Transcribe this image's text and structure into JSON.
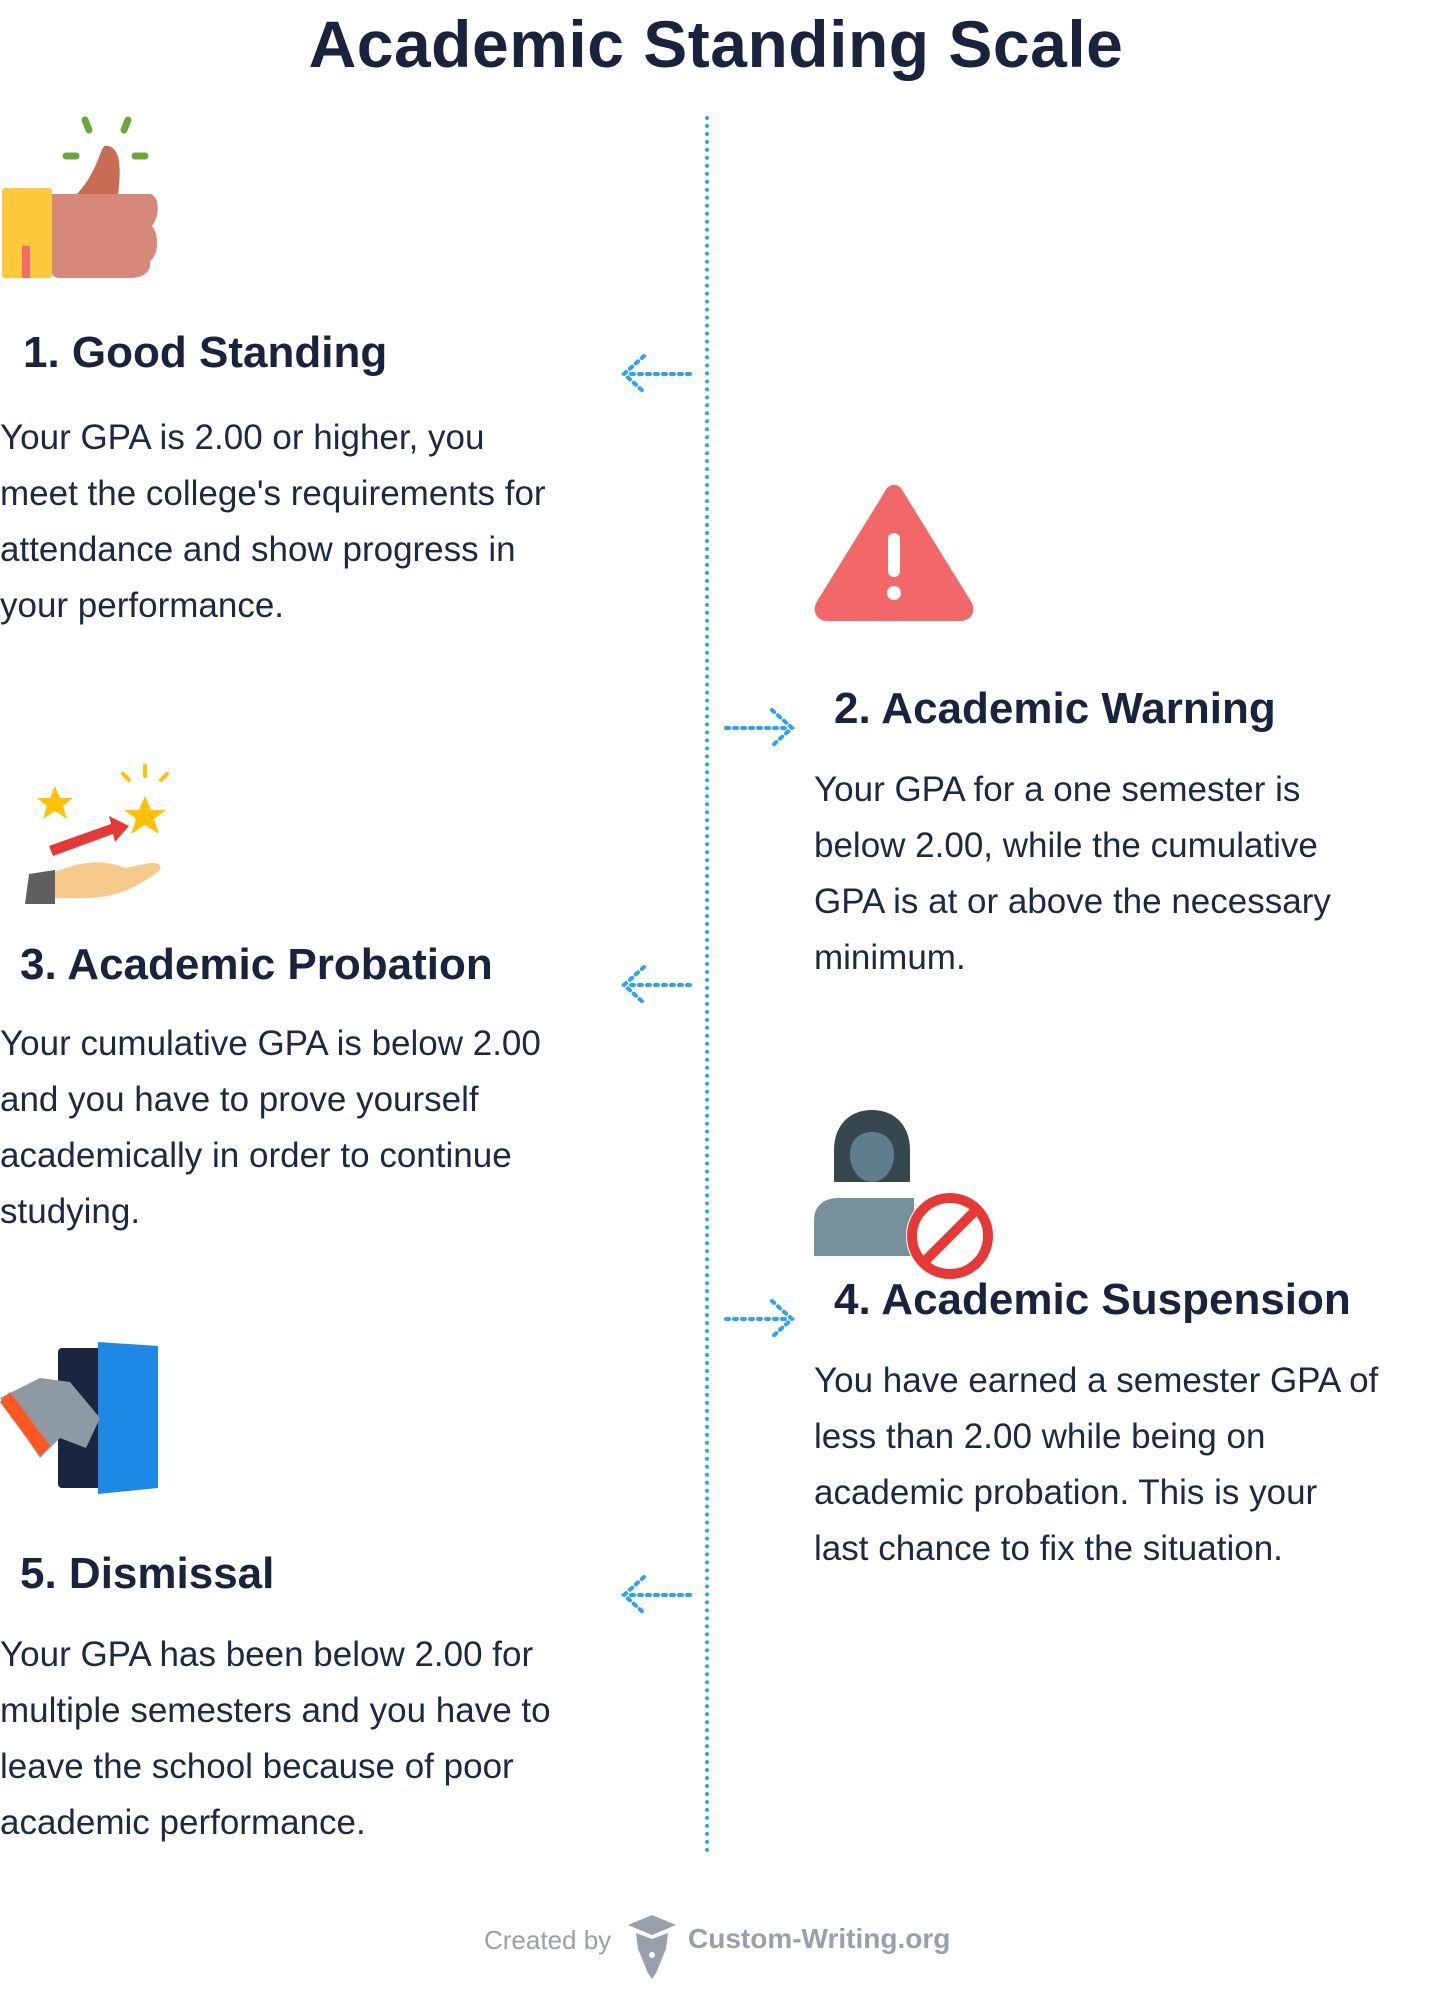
{
  "title": "Academic Standing Scale",
  "colors": {
    "heading": "#19233d",
    "text": "#1d2841",
    "connector": "#2ea3f2",
    "footer": "#9aa0ab"
  },
  "items": [
    {
      "heading": "1. Good Standing",
      "icon": "thumbs-up-icon",
      "side": "left",
      "lines": [
        "Your GPA is 2.00 or higher, you",
        "meet the college's requirements for",
        "attendance and show progress in",
        "your performance."
      ]
    },
    {
      "heading": "2. Academic Warning",
      "icon": "warning-triangle-icon",
      "side": "right",
      "lines": [
        "Your GPA for a one semester is",
        "below 2.00, while the cumulative",
        "GPA is at or above the necessary",
        "minimum."
      ]
    },
    {
      "heading": "3. Academic Probation",
      "icon": "hand-stars-icon",
      "side": "left",
      "lines": [
        "Your cumulative GPA is below 2.00",
        "and you have to prove yourself",
        "academically in order to continue",
        "studying."
      ]
    },
    {
      "heading": "4. Academic Suspension",
      "icon": "user-blocked-icon",
      "side": "right",
      "lines": [
        "You have earned a semester GPA of",
        "less than 2.00 while being on",
        "academic probation. This is your",
        "last chance to fix the situation."
      ]
    },
    {
      "heading": "5. Dismissal",
      "icon": "exit-door-icon",
      "side": "left",
      "lines": [
        "Your GPA has been below 2.00 for",
        "multiple semesters and you have to",
        "leave the school because of poor",
        "academic performance."
      ]
    }
  ],
  "footer": {
    "created_by": "Created by",
    "brand": "Custom-Writing.org"
  }
}
